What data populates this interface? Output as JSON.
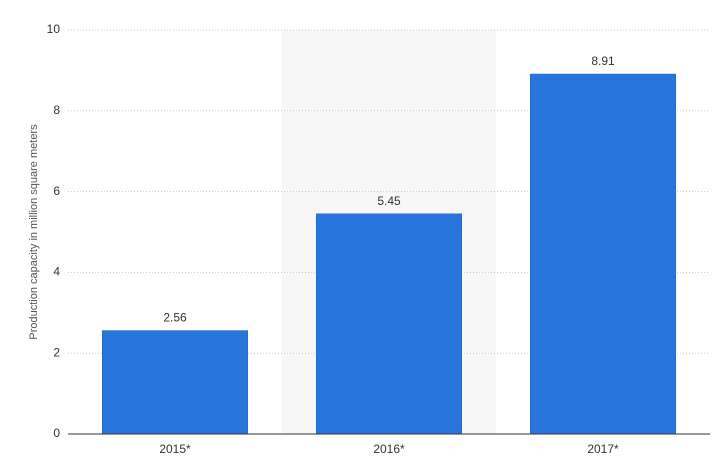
{
  "chart_data": {
    "type": "bar",
    "y_label": "Production capacity in million square meters",
    "categories": [
      "2015*",
      "2016*",
      "2017*"
    ],
    "values": [
      2.56,
      5.45,
      8.91
    ],
    "color": "#2876dd",
    "ylim": [
      0,
      10
    ],
    "yticks": [
      0,
      2,
      4,
      6,
      8,
      10
    ],
    "grid": true
  }
}
